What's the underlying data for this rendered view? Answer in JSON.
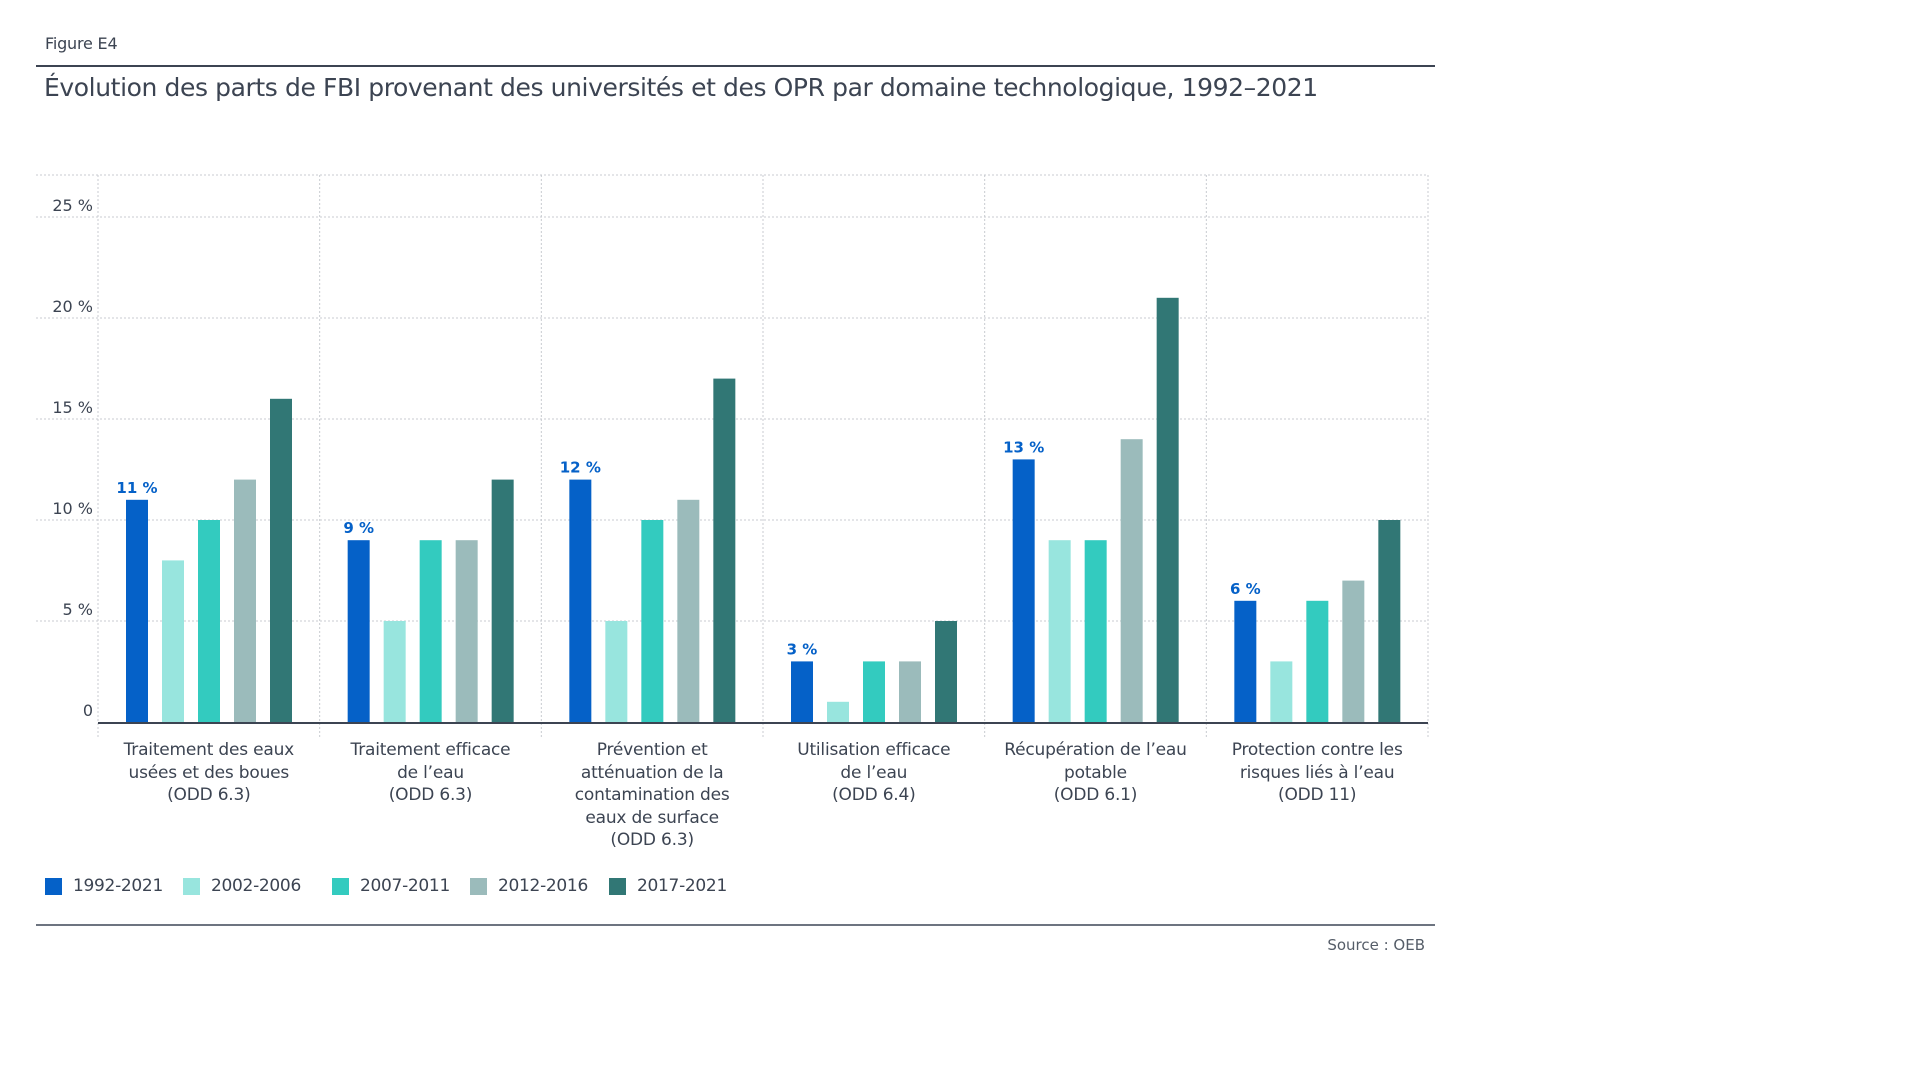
{
  "figure_label": "Figure E4",
  "title": "Évolution des parts de FBI provenant des universités et des OPR par domaine technologique, 1992–2021",
  "source": "Source : OEB",
  "colors": {
    "1992-2021": "#0561c8",
    "2002-2006": "#98e5de",
    "2007-2011": "#33cbbf",
    "2012-2016": "#9bbbbb",
    "2017-2021": "#317775",
    "data_label": "#0561c8",
    "text": "#3c4452",
    "grid": "#c8cbd0",
    "axis": "#3c4452"
  },
  "chart_data": {
    "type": "bar",
    "title": "Évolution des parts de FBI provenant des universités et des OPR par domaine technologique, 1992–2021",
    "xlabel": "",
    "ylabel": "",
    "ylim": [
      0,
      25
    ],
    "y_ticks": [
      0,
      5,
      10,
      15,
      20,
      25
    ],
    "y_tick_labels": [
      "0",
      "5 %",
      "10 %",
      "15 %",
      "20 %",
      "25 %"
    ],
    "grid": true,
    "legend_position": "bottom-left",
    "categories": [
      [
        "Traitement des eaux",
        "usées et des boues",
        "(ODD 6.3)"
      ],
      [
        "Traitement efficace",
        "de l’eau",
        "(ODD 6.3)"
      ],
      [
        "Prévention et",
        "atténuation de la",
        "contamination des",
        "eaux de surface",
        "(ODD 6.3)"
      ],
      [
        "Utilisation efficace",
        "de l’eau",
        "(ODD 6.4)"
      ],
      [
        "Récupération de l’eau",
        "potable",
        "(ODD 6.1)"
      ],
      [
        "Protection contre les",
        "risques liés à l’eau",
        "(ODD 11)"
      ]
    ],
    "series": [
      {
        "name": "1992-2021",
        "values": [
          11,
          9,
          12,
          3,
          13,
          6
        ],
        "data_labels": [
          "11 %",
          "9 %",
          "12 %",
          "3 %",
          "13 %",
          "6 %"
        ]
      },
      {
        "name": "2002-2006",
        "values": [
          8,
          5,
          5,
          1,
          9,
          3
        ]
      },
      {
        "name": "2007-2011",
        "values": [
          10,
          9,
          10,
          3,
          9,
          6
        ]
      },
      {
        "name": "2012-2016",
        "values": [
          12,
          9,
          11,
          3,
          14,
          7
        ]
      },
      {
        "name": "2017-2021",
        "values": [
          16,
          12,
          17,
          5,
          21,
          10
        ]
      }
    ]
  }
}
